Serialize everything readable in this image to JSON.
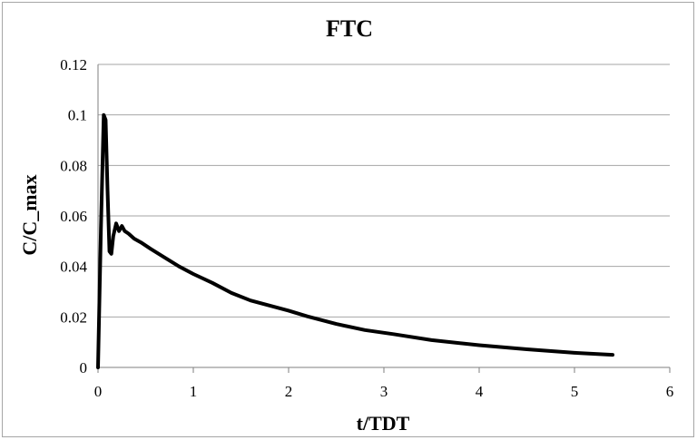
{
  "chart_data": {
    "type": "line",
    "title": "FTC",
    "xlabel": "t/TDT",
    "ylabel": "C/C_max",
    "xlim": [
      0,
      6
    ],
    "ylim": [
      0,
      0.12
    ],
    "xticks": [
      0,
      1,
      2,
      3,
      4,
      5,
      6
    ],
    "yticks": [
      0,
      0.02,
      0.04,
      0.06,
      0.08,
      0.1,
      0.12
    ],
    "xtick_labels": [
      "0",
      "1",
      "2",
      "3",
      "4",
      "5",
      "6"
    ],
    "ytick_labels": [
      "0",
      "0.02",
      "0.04",
      "0.06",
      "0.08",
      "0.1",
      "0.12"
    ],
    "grid": "horizontal",
    "legend": "none",
    "colors": {
      "series": "#000000",
      "grid": "#a6a6a6",
      "border": "#a6a6a6"
    },
    "series": [
      {
        "x": [
          0,
          0.03,
          0.06,
          0.08,
          0.1,
          0.12,
          0.14,
          0.16,
          0.19,
          0.22,
          0.25,
          0.28,
          0.32,
          0.38,
          0.45,
          0.55,
          0.7,
          0.85,
          1.0,
          1.2,
          1.4,
          1.6,
          1.8,
          2.0,
          2.2,
          2.5,
          2.8,
          3.1,
          3.5,
          4.0,
          4.5,
          5.0,
          5.4
        ],
        "y": [
          0,
          0.055,
          0.1,
          0.098,
          0.07,
          0.046,
          0.045,
          0.052,
          0.057,
          0.054,
          0.056,
          0.054,
          0.053,
          0.051,
          0.0495,
          0.047,
          0.0435,
          0.04,
          0.037,
          0.0335,
          0.0295,
          0.0265,
          0.0245,
          0.0225,
          0.0202,
          0.0172,
          0.0148,
          0.0132,
          0.0108,
          0.0088,
          0.0072,
          0.0058,
          0.005
        ]
      }
    ]
  }
}
